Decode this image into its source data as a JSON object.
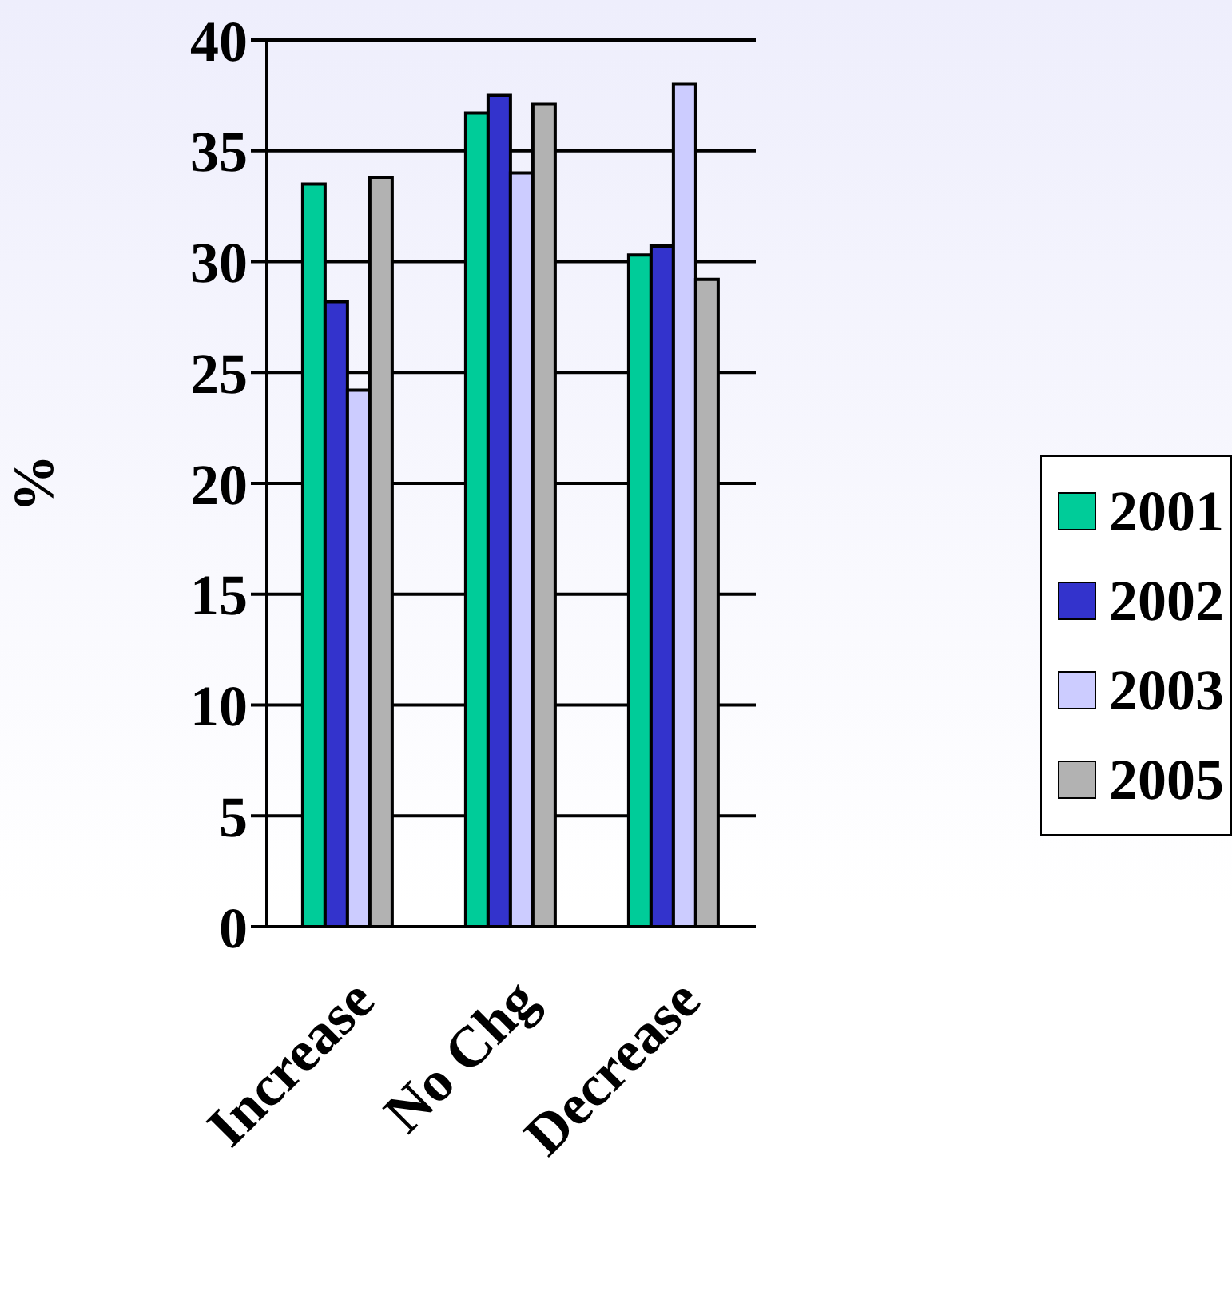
{
  "chart_data": {
    "type": "bar",
    "ylabel": "%",
    "categories": [
      "Increase",
      "No Chg",
      "Decrease"
    ],
    "series": [
      {
        "name": "2001",
        "color": "#00cc99",
        "values": [
          33.5,
          36.7,
          30.3
        ]
      },
      {
        "name": "2002",
        "color": "#3333cc",
        "values": [
          28.2,
          37.5,
          30.7
        ]
      },
      {
        "name": "2003",
        "color": "#ccccff",
        "values": [
          24.2,
          34.0,
          38.0
        ]
      },
      {
        "name": "2005",
        "color": "#b2b2b2",
        "values": [
          33.8,
          37.1,
          29.2
        ]
      }
    ],
    "ylim": [
      0,
      40
    ],
    "yticks": [
      0,
      5,
      10,
      15,
      20,
      25,
      30,
      35,
      40
    ],
    "grid": "y",
    "legend": "right"
  }
}
